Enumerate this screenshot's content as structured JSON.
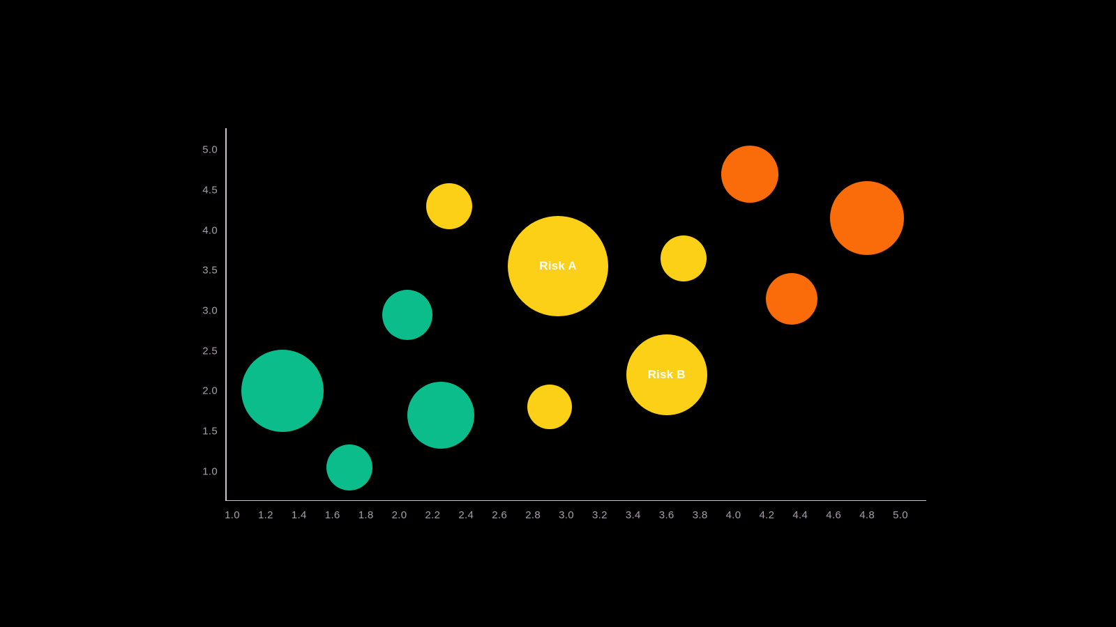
{
  "background_color": "#000000",
  "axis_style": {
    "line_color": "#CCC3CC",
    "tick_label_color": "#A89DAA"
  },
  "bubble_label_color": "#FFFFFF",
  "chart_data": {
    "type": "scatter",
    "subtype": "bubble",
    "title": "",
    "xlabel": "",
    "ylabel": "",
    "xlim": [
      1.0,
      5.0
    ],
    "ylim": [
      1.0,
      5.0
    ],
    "grid": false,
    "legend_shown": false,
    "x_ticks": [
      "1.0",
      "1.2",
      "1.4",
      "1.6",
      "1.8",
      "2.0",
      "2.2",
      "2.4",
      "2.6",
      "2.8",
      "3.0",
      "3.2",
      "3.4",
      "3.6",
      "3.8",
      "4.0",
      "4.2",
      "4.4",
      "4.6",
      "4.8",
      "5.0"
    ],
    "y_ticks": [
      "5.0",
      "4.5",
      "4.0",
      "3.5",
      "3.0",
      "2.5",
      "2.0",
      "1.5",
      "1.0"
    ],
    "series": [
      {
        "name": "green",
        "color": "#0CBD8C",
        "points": [
          {
            "x": 1.3,
            "y": 2.0,
            "r": 59
          },
          {
            "x": 1.7,
            "y": 1.05,
            "r": 33
          },
          {
            "x": 2.05,
            "y": 2.95,
            "r": 36
          },
          {
            "x": 2.25,
            "y": 1.7,
            "r": 48
          }
        ]
      },
      {
        "name": "yellow",
        "color": "#FCD016",
        "points": [
          {
            "x": 2.3,
            "y": 4.3,
            "r": 33
          },
          {
            "x": 2.95,
            "y": 3.55,
            "r": 72,
            "label": "Risk A"
          },
          {
            "x": 2.9,
            "y": 1.8,
            "r": 32
          },
          {
            "x": 3.6,
            "y": 2.2,
            "r": 58,
            "label": "Risk B"
          },
          {
            "x": 3.7,
            "y": 3.65,
            "r": 33
          }
        ]
      },
      {
        "name": "orange",
        "color": "#FA6B0A",
        "points": [
          {
            "x": 4.1,
            "y": 4.7,
            "r": 41
          },
          {
            "x": 4.35,
            "y": 3.15,
            "r": 37
          },
          {
            "x": 4.8,
            "y": 4.15,
            "r": 53
          }
        ]
      }
    ]
  }
}
